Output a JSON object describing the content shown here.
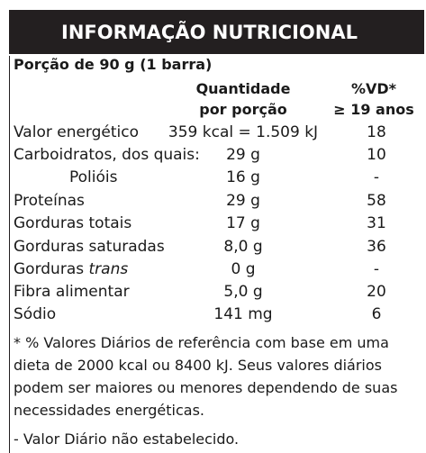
{
  "header": {
    "title": "INFORMAÇÃO NUTRICIONAL"
  },
  "portion": "Porção de 90 g (1 barra)",
  "columns": {
    "quantity_line1": "Quantidade",
    "quantity_line2": "por porção",
    "vd_line1": "%VD*",
    "vd_line2": "≥ 19 anos"
  },
  "rows": [
    {
      "label": "Valor energético",
      "qty": "359 kcal = 1.509 kJ",
      "vd": "18"
    },
    {
      "label": "Carboidratos, dos quais:",
      "qty": "29 g",
      "vd": "10"
    },
    {
      "label": "Polióis",
      "qty": "16 g",
      "vd": "-"
    },
    {
      "label": "Proteínas",
      "qty": "29 g",
      "vd": "58"
    },
    {
      "label": "Gorduras totais",
      "qty": "17 g",
      "vd": "31"
    },
    {
      "label": "Gorduras saturadas",
      "qty": "8,0 g",
      "vd": "36"
    },
    {
      "label_prefix": "Gorduras ",
      "label_italic": "trans",
      "qty": "0 g",
      "vd": "-"
    },
    {
      "label": "Fibra alimentar",
      "qty": "5,0 g",
      "vd": "20"
    },
    {
      "label": "Sódio",
      "qty": "141 mg",
      "vd": "6"
    }
  ],
  "footnote": "* % Valores Diários de referência com base em uma\ndieta de 2000 kcal ou 8400 kJ. Seus valores diários\npodem ser maiores ou menores dependendo de suas\nnecessidades energéticas.",
  "footnote2": "- Valor Diário não estabelecido."
}
